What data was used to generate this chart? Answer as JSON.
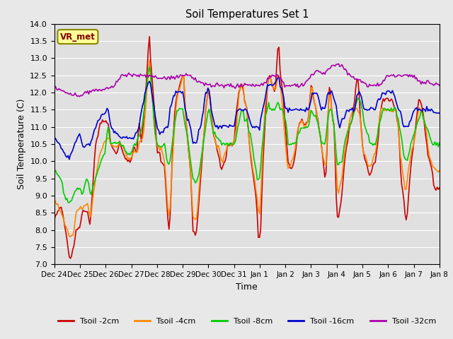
{
  "title": "Soil Temperatures Set 1",
  "xlabel": "Time",
  "ylabel": "Soil Temperature (C)",
  "ylim": [
    7.0,
    14.0
  ],
  "yticks": [
    7.0,
    7.5,
    8.0,
    8.5,
    9.0,
    9.5,
    10.0,
    10.5,
    11.0,
    11.5,
    12.0,
    12.5,
    13.0,
    13.5,
    14.0
  ],
  "x_labels": [
    "Dec 24",
    "Dec 25",
    "Dec 26",
    "Dec 27",
    "Dec 28",
    "Dec 29",
    "Dec 30",
    "Dec 31",
    "Jan 1",
    "Jan 2",
    "Jan 3",
    "Jan 4",
    "Jan 5",
    "Jan 6",
    "Jan 7",
    "Jan 8"
  ],
  "n_points": 337,
  "legend_labels": [
    "Tsoil -2cm",
    "Tsoil -4cm",
    "Tsoil -8cm",
    "Tsoil -16cm",
    "Tsoil -32cm"
  ],
  "line_colors": [
    "#cc0000",
    "#ff8800",
    "#00cc00",
    "#0000cc",
    "#aa00aa"
  ],
  "line_widths": [
    1.2,
    1.2,
    1.2,
    1.2,
    1.2
  ],
  "background_color": "#e8e8e8",
  "plot_bg_color": "#e0e0e0",
  "grid_color": "#ffffff",
  "annotation_text": "VR_met",
  "annotation_box_color": "#ffff99",
  "annotation_border_color": "#888800",
  "fig_width": 6.4,
  "fig_height": 4.8,
  "fig_dpi": 100
}
